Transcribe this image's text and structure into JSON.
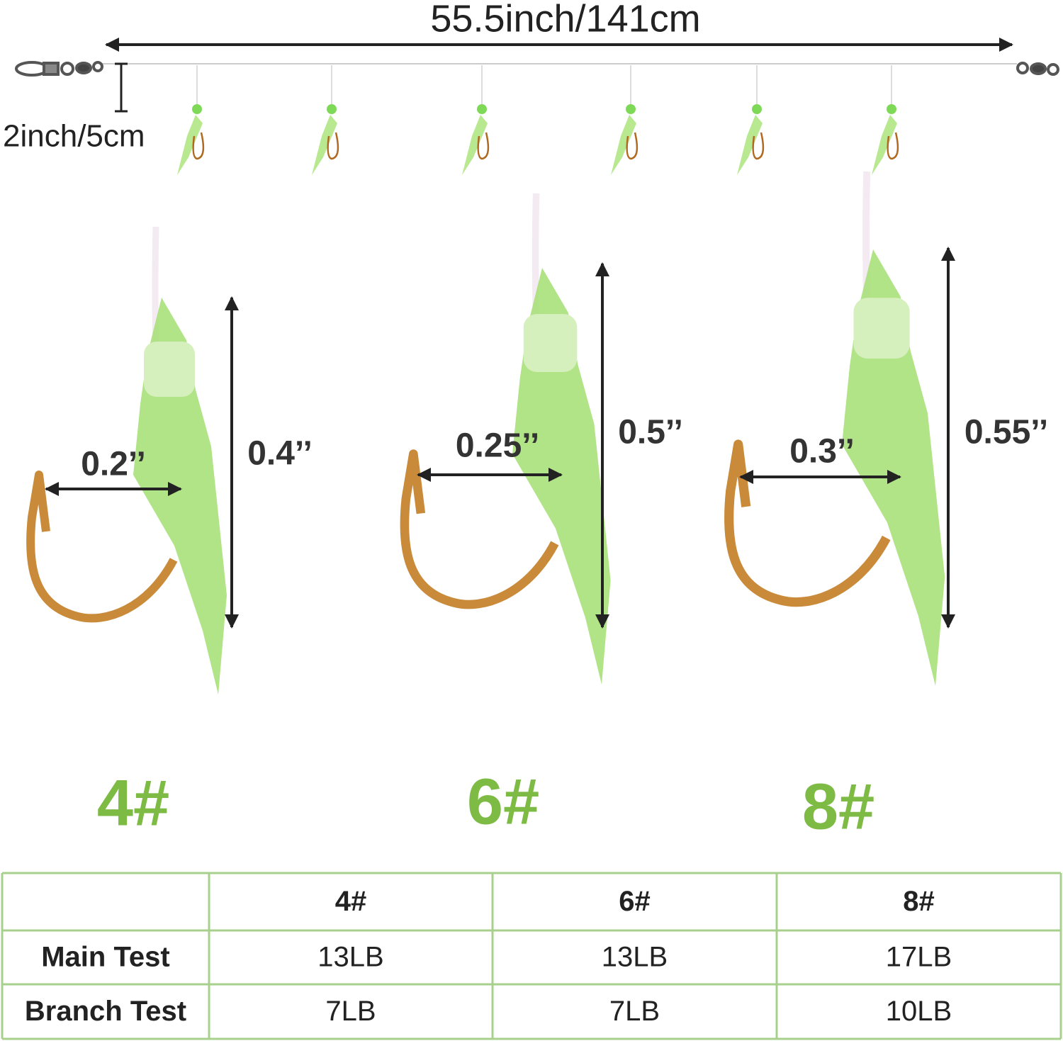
{
  "rig": {
    "length_label": "55.5inch/141cm",
    "branch_label": "2inch/5cm"
  },
  "hooks": [
    {
      "size": "4#",
      "width": "0.2’’",
      "height": "0.4’’"
    },
    {
      "size": "6#",
      "width": "0.25’’",
      "height": "0.5’’"
    },
    {
      "size": "8#",
      "width": "0.3’’",
      "height": "0.55’’"
    }
  ],
  "table": {
    "columns": [
      "4#",
      "6#",
      "8#"
    ],
    "rows": [
      {
        "label": "Main Test",
        "cells": [
          "13LB",
          "13LB",
          "17LB"
        ]
      },
      {
        "label": "Branch Test",
        "cells": [
          "7LB",
          "7LB",
          "10LB"
        ]
      }
    ]
  }
}
